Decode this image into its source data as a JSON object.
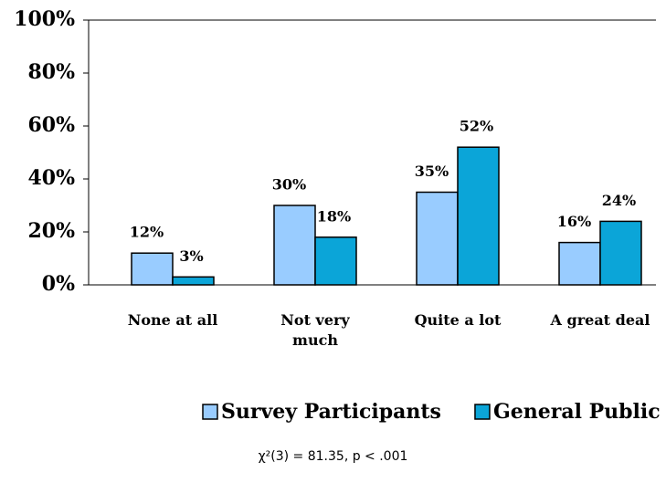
{
  "chart_data": {
    "type": "bar",
    "categories": [
      "None at all",
      "Not very much",
      "Quite a lot",
      "A great deal"
    ],
    "series": [
      {
        "name": "Survey Participants",
        "color": "#99ccff",
        "values": [
          12,
          30,
          35,
          16
        ],
        "value_labels": [
          "12%",
          "30%",
          "35%",
          "16%"
        ]
      },
      {
        "name": "General Public",
        "color": "#0ba5d8",
        "values": [
          3,
          18,
          52,
          24
        ],
        "value_labels": [
          "3%",
          "18%",
          "52%",
          "24%"
        ]
      }
    ],
    "ylim": [
      0,
      100
    ],
    "yticks": [
      {
        "value": 0,
        "label": "0%"
      },
      {
        "value": 20,
        "label": "20%"
      },
      {
        "value": 40,
        "label": "40%"
      },
      {
        "value": 60,
        "label": "60%"
      },
      {
        "value": 80,
        "label": "80%"
      },
      {
        "value": 100,
        "label": "100%"
      }
    ],
    "legend": "bottom",
    "footnote": "χ²(3) = 81.35, p < .001"
  }
}
